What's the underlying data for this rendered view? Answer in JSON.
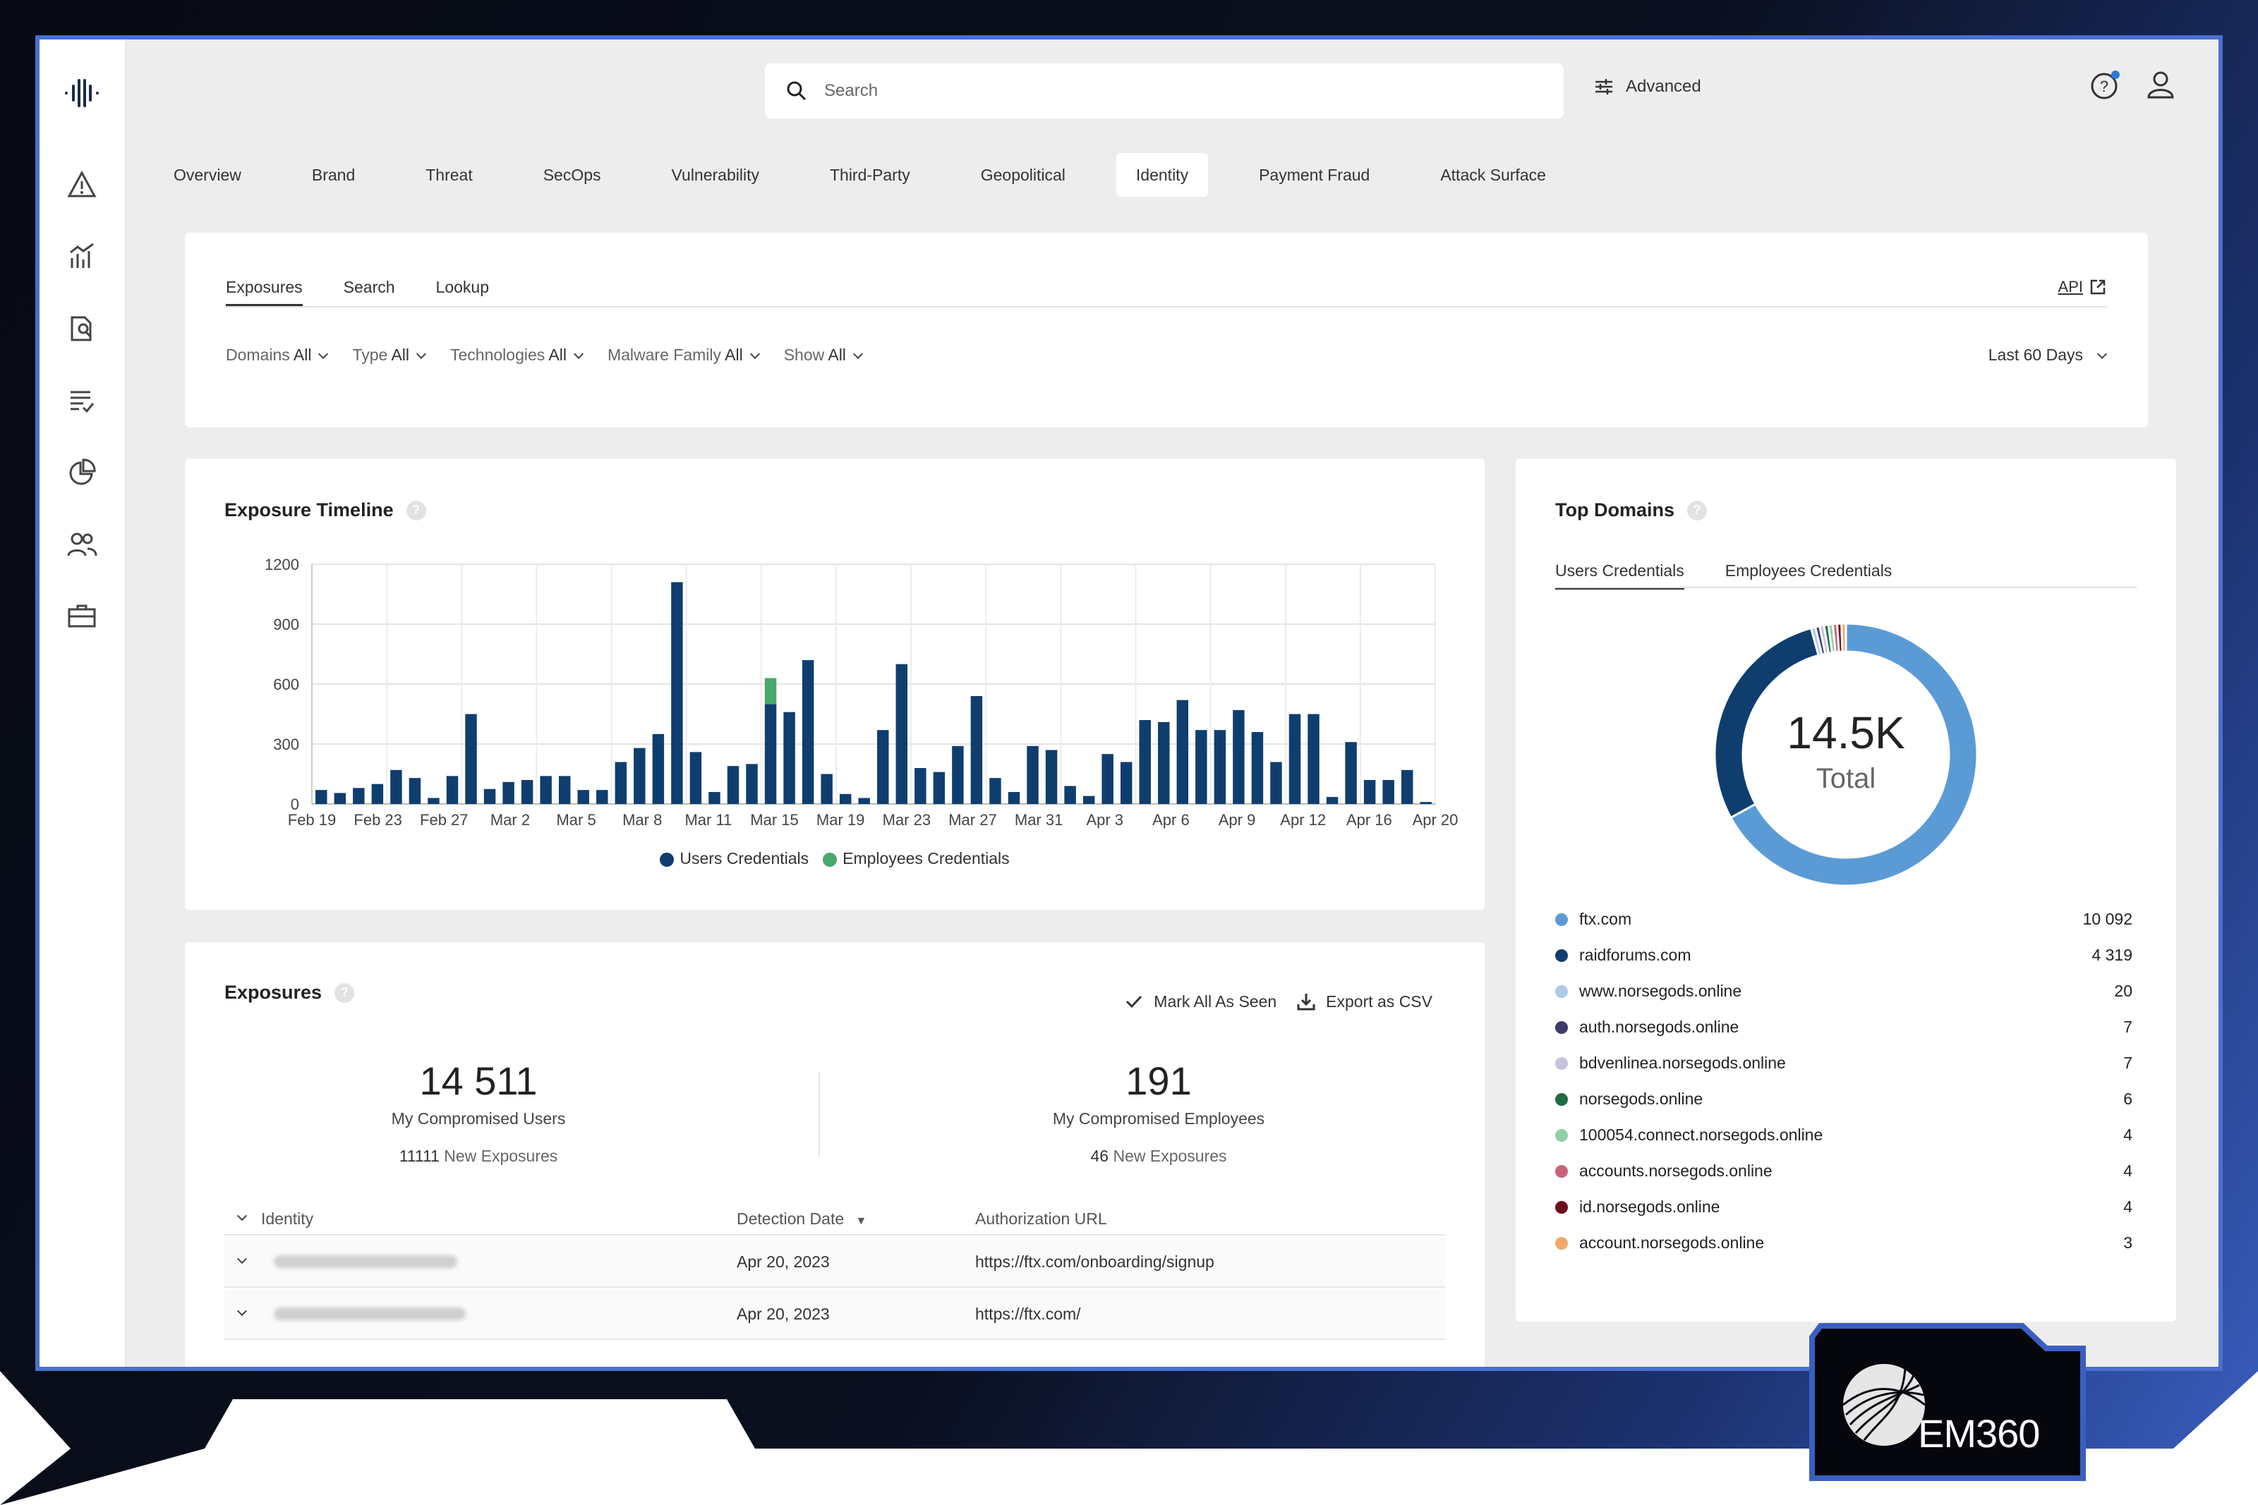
{
  "search": {
    "placeholder": "Search"
  },
  "advanced_label": "Advanced",
  "nav_tabs": [
    "Overview",
    "Brand",
    "Threat",
    "SecOps",
    "Vulnerability",
    "Third-Party",
    "Geopolitical",
    "Identity",
    "Payment Fraud",
    "Attack Surface"
  ],
  "active_tab": "Identity",
  "subtabs": [
    "Exposures",
    "Search",
    "Lookup"
  ],
  "api_label": "API",
  "filters": [
    {
      "label": "Domains",
      "value": "All"
    },
    {
      "label": "Type",
      "value": "All"
    },
    {
      "label": "Technologies",
      "value": "All"
    },
    {
      "label": "Malware Family",
      "value": "All"
    },
    {
      "label": "Show",
      "value": "All"
    }
  ],
  "date_range": "Last 60 Days",
  "timeline": {
    "title": "Exposure Timeline",
    "legend": [
      "Users Credentials",
      "Employees Credentials"
    ]
  },
  "colors": {
    "users": "#0f3e6e",
    "employees": "#4aa86a",
    "accent": "#4a6fd0"
  },
  "chart_data": {
    "type": "bar",
    "title": "Exposure Timeline",
    "x_tick_labels": [
      "Feb 19",
      "Feb 23",
      "Feb 27",
      "Mar 2",
      "Mar 5",
      "Mar 8",
      "Mar 11",
      "Mar 15",
      "Mar 19",
      "Mar 23",
      "Mar 27",
      "Mar 31",
      "Apr 3",
      "Apr 6",
      "Apr 9",
      "Apr 12",
      "Apr 16",
      "Apr 20"
    ],
    "y_ticks": [
      0,
      300,
      600,
      900,
      1200
    ],
    "ylim": [
      0,
      1200
    ],
    "series": [
      {
        "name": "Users Credentials",
        "values": [
          70,
          55,
          80,
          100,
          170,
          130,
          30,
          140,
          450,
          75,
          110,
          120,
          140,
          140,
          70,
          70,
          210,
          280,
          350,
          1110,
          260,
          60,
          190,
          200,
          500,
          460,
          720,
          150,
          50,
          30,
          370,
          700,
          180,
          160,
          290,
          540,
          130,
          60,
          290,
          270,
          90,
          40,
          250,
          210,
          420,
          410,
          520,
          370,
          370,
          470,
          360,
          210,
          450,
          450,
          35,
          310,
          120,
          120,
          170,
          10
        ]
      },
      {
        "name": "Employees Credentials",
        "values": [
          0,
          0,
          0,
          0,
          0,
          0,
          0,
          0,
          0,
          0,
          0,
          0,
          0,
          0,
          0,
          0,
          0,
          0,
          0,
          0,
          0,
          0,
          0,
          0,
          130,
          0,
          0,
          0,
          0,
          0,
          0,
          0,
          0,
          0,
          0,
          0,
          0,
          0,
          0,
          0,
          0,
          0,
          0,
          0,
          0,
          0,
          0,
          0,
          0,
          0,
          0,
          0,
          0,
          0,
          0,
          0,
          0,
          0,
          0,
          0
        ]
      }
    ],
    "legend": "bottom-center",
    "grid": true
  },
  "top_domains": {
    "title": "Top Domains",
    "tabs": [
      "Users Credentials",
      "Employees Credentials"
    ],
    "total_value": "14.5K",
    "total_label": "Total",
    "items": [
      {
        "name": "ftx.com",
        "count": "10 092",
        "value": 10092,
        "color": "#5b9bd5"
      },
      {
        "name": "raidforums.com",
        "count": "4 319",
        "value": 4319,
        "color": "#0f3e6e"
      },
      {
        "name": "www.norsegods.online",
        "count": "20",
        "value": 20,
        "color": "#aec8e8"
      },
      {
        "name": "auth.norsegods.online",
        "count": "7",
        "value": 7,
        "color": "#3d3a6e"
      },
      {
        "name": "bdvenlinea.norsegods.online",
        "count": "7",
        "value": 7,
        "color": "#c6c3dd"
      },
      {
        "name": "norsegods.online",
        "count": "6",
        "value": 6,
        "color": "#1f6b43"
      },
      {
        "name": "100054.connect.norsegods.online",
        "count": "4",
        "value": 4,
        "color": "#8fcfa6"
      },
      {
        "name": "accounts.norsegods.online",
        "count": "4",
        "value": 4,
        "color": "#c8647a"
      },
      {
        "name": "id.norsegods.online",
        "count": "4",
        "value": 4,
        "color": "#6b0f1f"
      },
      {
        "name": "account.norsegods.online",
        "count": "3",
        "value": 3,
        "color": "#f0a868"
      }
    ]
  },
  "exposures": {
    "title": "Exposures",
    "mark_all_label": "Mark All As Seen",
    "export_label": "Export as CSV",
    "users_count": "14 511",
    "users_label": "My Compromised Users",
    "users_new_count": "11111",
    "users_new_label": "New Exposures",
    "employees_count": "191",
    "employees_label": "My Compromised Employees",
    "employees_new_count": "46",
    "employees_new_label": "New Exposures",
    "columns": [
      "Identity",
      "Detection Date",
      "Authorization URL"
    ],
    "rows": [
      {
        "date": "Apr 20, 2023",
        "url": "https://ftx.com/onboarding/signup"
      },
      {
        "date": "Apr 20, 2023",
        "url": "https://ftx.com/"
      }
    ]
  },
  "brand_logo_text": "EM360"
}
